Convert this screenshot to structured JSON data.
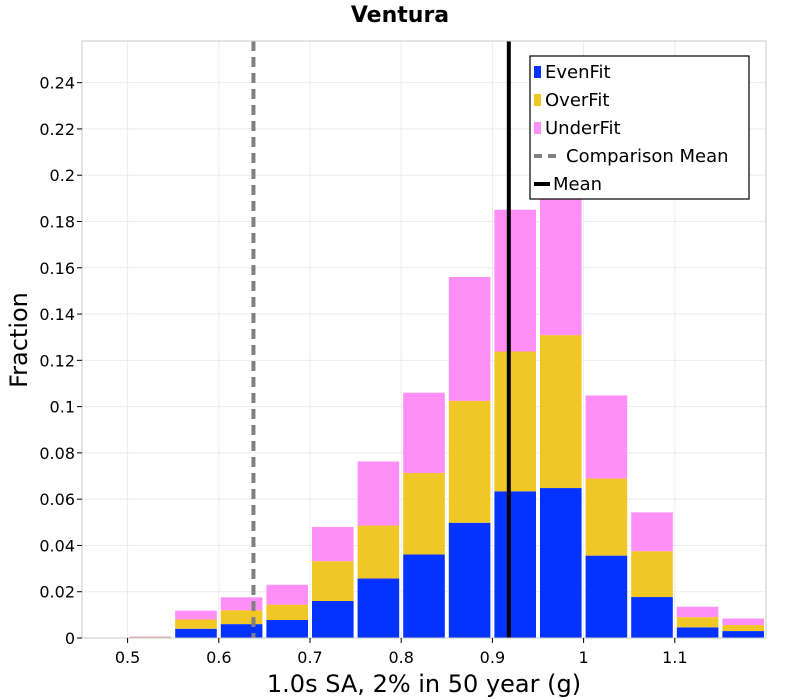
{
  "chart_data": {
    "type": "bar",
    "stacked": true,
    "title": "Ventura",
    "xlabel": "1.0s SA, 2% in 50 year (g)",
    "ylabel": "Fraction",
    "xlim": [
      0.45,
      1.2
    ],
    "ylim": [
      0,
      0.258
    ],
    "x_ticks": [
      0.5,
      0.6,
      0.7,
      0.8,
      0.9,
      1,
      1.1
    ],
    "x_tick_labels": [
      "0.5",
      "0.6",
      "0.7",
      "0.8",
      "0.9",
      "1",
      "1.1"
    ],
    "y_ticks": [
      0,
      0.02,
      0.04,
      0.06,
      0.08,
      0.1,
      0.12,
      0.14,
      0.16,
      0.18,
      0.2,
      0.22,
      0.24
    ],
    "y_tick_labels": [
      "0",
      "0.02",
      "0.04",
      "0.06",
      "0.08",
      "0.1",
      "0.12",
      "0.14",
      "0.16",
      "0.18",
      "0.2",
      "0.22",
      "0.24"
    ],
    "grid": true,
    "legend_position": "top-right",
    "bin_width": 0.05,
    "bin_centers": [
      0.525,
      0.575,
      0.625,
      0.675,
      0.725,
      0.775,
      0.825,
      0.875,
      0.925,
      0.975,
      1.025,
      1.075,
      1.125,
      1.175
    ],
    "series": [
      {
        "name": "EvenFit",
        "color": "#0433ff",
        "values": [
          0.0003,
          0.004,
          0.006,
          0.0078,
          0.016,
          0.0257,
          0.0361,
          0.0498,
          0.0634,
          0.0648,
          0.0356,
          0.0177,
          0.0046,
          0.003
        ]
      },
      {
        "name": "OverFit",
        "color": "#f0c724",
        "values": [
          0.0002,
          0.004,
          0.006,
          0.0066,
          0.0172,
          0.0229,
          0.0352,
          0.0527,
          0.0604,
          0.0661,
          0.0333,
          0.0198,
          0.0044,
          0.0026
        ]
      },
      {
        "name": "UnderFit",
        "color": "#ff8ef6",
        "values": [
          0.0002,
          0.0038,
          0.0056,
          0.0086,
          0.0148,
          0.0277,
          0.0347,
          0.0535,
          0.0613,
          0.0636,
          0.0359,
          0.0168,
          0.0045,
          0.0028
        ]
      }
    ],
    "lines": [
      {
        "name": "Comparison Mean",
        "x": 0.638,
        "color": "#808080",
        "style": "dashed"
      },
      {
        "name": "Mean",
        "x": 0.918,
        "color": "#000000",
        "style": "solid"
      }
    ]
  }
}
